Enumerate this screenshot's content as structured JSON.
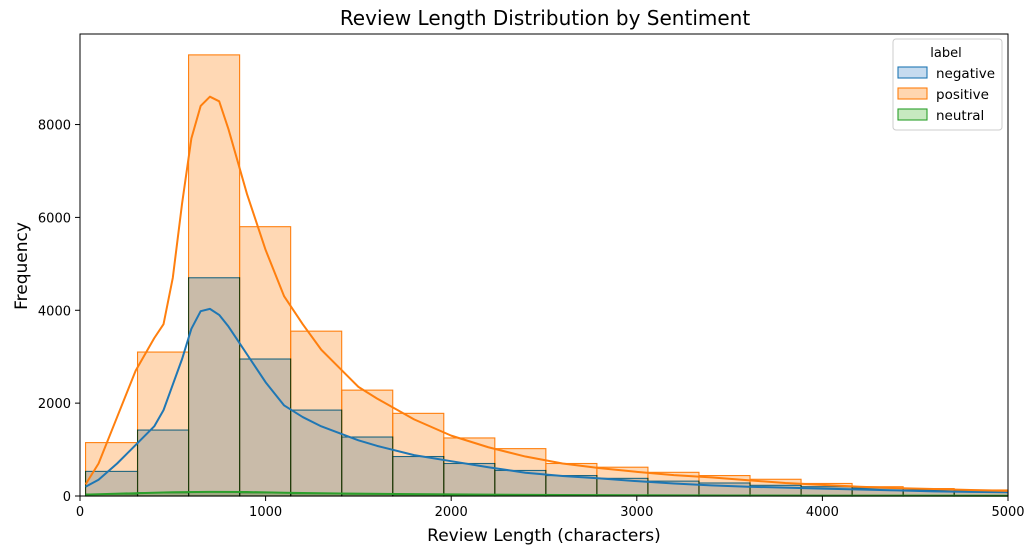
{
  "chart_data": {
    "type": "histogram",
    "title": "Review Length Distribution by Sentiment",
    "xlabel": "Review Length (characters)",
    "ylabel": "Frequency",
    "xlim": [
      0,
      5000
    ],
    "ylim": [
      0,
      9950
    ],
    "xticks": [
      0,
      1000,
      2000,
      3000,
      4000,
      5000
    ],
    "yticks": [
      0,
      2000,
      4000,
      6000,
      8000
    ],
    "grid": false,
    "legend": {
      "title": "label",
      "placement": "top-right",
      "entries": [
        "negative",
        "positive",
        "neutral"
      ]
    },
    "bin_edges": [
      30,
      310,
      585,
      860,
      1135,
      1410,
      1685,
      1960,
      2235,
      2510,
      2785,
      3060,
      3335,
      3610,
      3885,
      4160,
      4435,
      4710,
      5000
    ],
    "series": [
      {
        "name": "negative",
        "color": "#1f77b4",
        "fill": "#c6dbef",
        "counts": [
          530,
          1420,
          4700,
          2950,
          1850,
          1270,
          850,
          700,
          550,
          440,
          380,
          320,
          280,
          230,
          200,
          170,
          130,
          110
        ],
        "kde_x": [
          30,
          100,
          200,
          300,
          400,
          450,
          500,
          550,
          600,
          650,
          700,
          750,
          800,
          850,
          900,
          1000,
          1100,
          1200,
          1300,
          1400,
          1500,
          1600,
          1800,
          2000,
          2200,
          2400,
          2600,
          2800,
          3000,
          3200,
          3400,
          3600,
          3800,
          4000,
          4200,
          4400,
          4600,
          4800,
          5000
        ],
        "kde_y": [
          200,
          350,
          700,
          1100,
          1500,
          1850,
          2400,
          2950,
          3600,
          3980,
          4030,
          3900,
          3650,
          3350,
          3050,
          2450,
          1950,
          1700,
          1500,
          1350,
          1200,
          1080,
          880,
          750,
          620,
          500,
          430,
          380,
          320,
          270,
          230,
          200,
          180,
          160,
          140,
          120,
          100,
          90,
          80
        ]
      },
      {
        "name": "positive",
        "color": "#ff7f0e",
        "fill": "#ffd6b0",
        "counts": [
          1150,
          3100,
          9500,
          5800,
          3550,
          2280,
          1780,
          1250,
          1020,
          700,
          620,
          510,
          440,
          360,
          270,
          200,
          160,
          130
        ],
        "kde_x": [
          30,
          100,
          200,
          300,
          400,
          450,
          500,
          550,
          600,
          650,
          700,
          750,
          800,
          850,
          900,
          1000,
          1100,
          1200,
          1300,
          1400,
          1500,
          1600,
          1800,
          2000,
          2200,
          2400,
          2600,
          2800,
          3000,
          3200,
          3400,
          3600,
          3800,
          4000,
          4200,
          4400,
          4600,
          4800,
          5000
        ],
        "kde_y": [
          250,
          700,
          1700,
          2700,
          3400,
          3700,
          4700,
          6300,
          7700,
          8400,
          8600,
          8500,
          7900,
          7200,
          6500,
          5300,
          4300,
          3700,
          3150,
          2750,
          2350,
          2100,
          1650,
          1300,
          1050,
          850,
          700,
          600,
          520,
          450,
          400,
          340,
          280,
          240,
          200,
          170,
          150,
          130,
          110
        ]
      },
      {
        "name": "neutral",
        "color": "#2ca02c",
        "fill": "#c7e9c0",
        "counts": [
          40,
          70,
          90,
          70,
          50,
          40,
          30,
          25,
          20,
          15,
          15,
          12,
          10,
          10,
          8,
          8,
          6,
          5
        ],
        "kde_x": [
          30,
          300,
          500,
          700,
          900,
          1100,
          1400,
          1800,
          2200,
          2600,
          3000,
          3500,
          4000,
          4500,
          5000
        ],
        "kde_y": [
          30,
          60,
          80,
          90,
          85,
          70,
          55,
          40,
          30,
          22,
          16,
          12,
          9,
          7,
          5
        ]
      }
    ]
  }
}
